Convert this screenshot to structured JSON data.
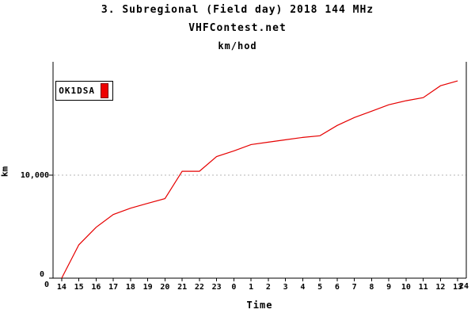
{
  "title": {
    "line1": "3. Subregional (Field day) 2018 144 MHz",
    "line2": "VHFContest.net",
    "line3": "km/hod"
  },
  "legend": {
    "label": "OK1DSA",
    "marker_color": "#ee0000"
  },
  "axes": {
    "x_label": "Time",
    "y_label": "km",
    "y_tick_labels": [
      "0",
      "10,000"
    ],
    "x_origin_label": "0",
    "x_end_label": "24"
  },
  "colors": {
    "line": "#e60000",
    "grid": "#b4b4b4",
    "axis": "#000000",
    "background": "#ffffff"
  },
  "chart_data": {
    "type": "line",
    "title": "3. Subregional (Field day) 2018 144 MHz",
    "subtitle": "VHFContest.net km/hod",
    "xlabel": "Time",
    "ylabel": "km",
    "ylim": [
      0,
      21000
    ],
    "grid_y_values": [
      10000
    ],
    "grid_style": "dotted",
    "legend_position": "top-left",
    "x_tick_labels": [
      "14",
      "15",
      "16",
      "17",
      "18",
      "19",
      "20",
      "21",
      "22",
      "23",
      "0",
      "1",
      "2",
      "3",
      "4",
      "5",
      "6",
      "7",
      "8",
      "9",
      "10",
      "11",
      "12",
      "13"
    ],
    "series": [
      {
        "name": "OK1DSA",
        "color": "#e60000",
        "points": [
          {
            "clock": "14",
            "km": 0
          },
          {
            "clock": "15",
            "km": 3240
          },
          {
            "clock": "16",
            "km": 4940
          },
          {
            "clock": "17",
            "km": 6180
          },
          {
            "clock": "18",
            "km": 6790
          },
          {
            "clock": "19",
            "km": 7260
          },
          {
            "clock": "20",
            "km": 7720
          },
          {
            "clock": "21",
            "km": 10380
          },
          {
            "clock": "22",
            "km": 10380
          },
          {
            "clock": "23",
            "km": 11810
          },
          {
            "clock": "0",
            "km": 12350
          },
          {
            "clock": "1",
            "km": 12970
          },
          {
            "clock": "2",
            "km": 13200
          },
          {
            "clock": "3",
            "km": 13430
          },
          {
            "clock": "4",
            "km": 13660
          },
          {
            "clock": "5",
            "km": 13820
          },
          {
            "clock": "6",
            "km": 14820
          },
          {
            "clock": "7",
            "km": 15590
          },
          {
            "clock": "8",
            "km": 16210
          },
          {
            "clock": "9",
            "km": 16830
          },
          {
            "clock": "10",
            "km": 17220
          },
          {
            "clock": "11",
            "km": 17520
          },
          {
            "clock": "12",
            "km": 18680
          },
          {
            "clock": "13",
            "km": 19150
          }
        ]
      }
    ]
  }
}
